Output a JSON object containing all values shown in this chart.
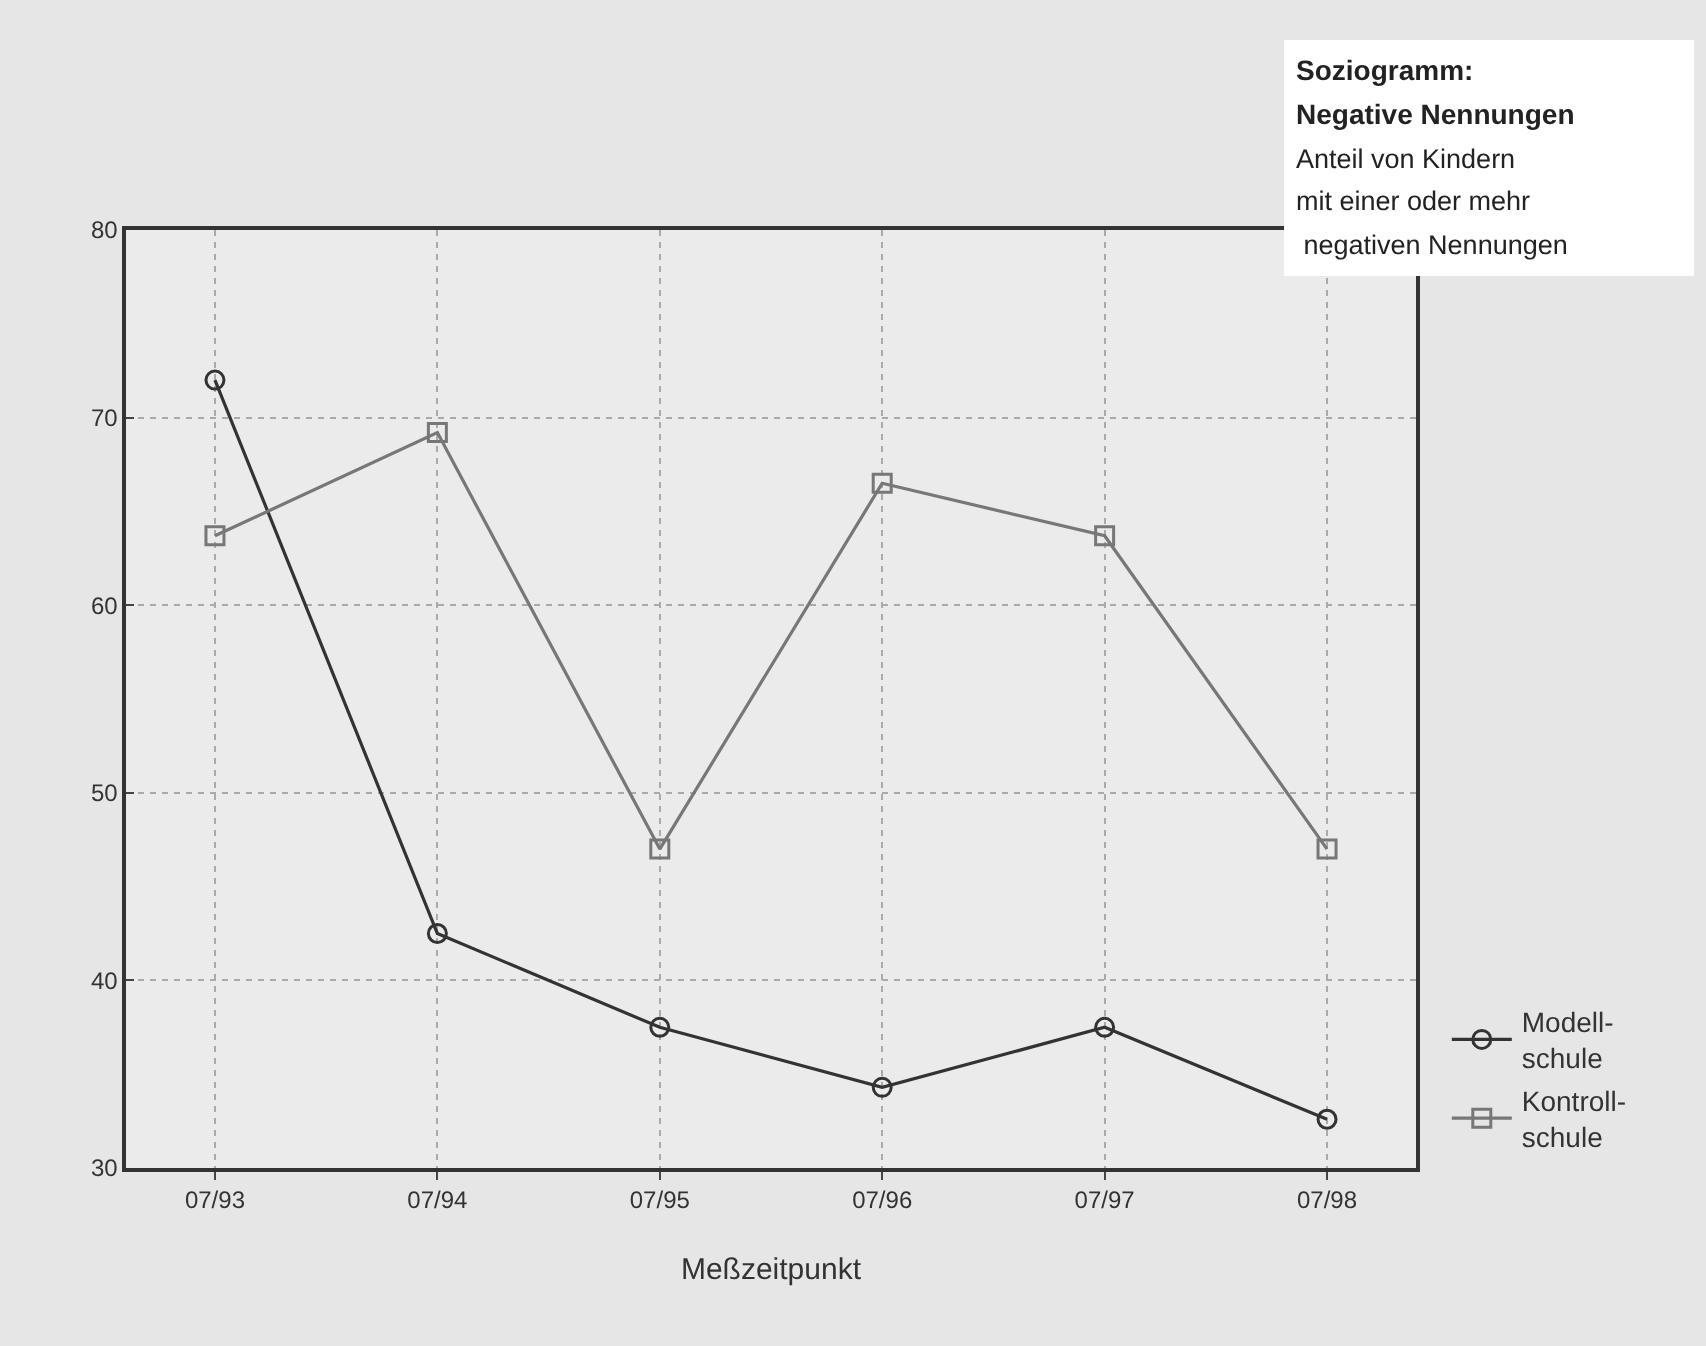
{
  "chart_data": {
    "type": "line",
    "title": "Soziogramm:\nNegative Nennungen",
    "subtitle": "Anteil von Kindern\nmit einer oder mehr\n negativen Nennungen",
    "xlabel": "Meßzeitpunkt",
    "categories": [
      "07/93",
      "07/94",
      "07/95",
      "07/96",
      "07/97",
      "07/98"
    ],
    "series": [
      {
        "name": "Modell-\nschule",
        "color": "#333333",
        "marker": "circle",
        "values": [
          72,
          42.5,
          37.5,
          34.3,
          37.5,
          32.6
        ]
      },
      {
        "name": "Kontroll-\nschule",
        "color": "#777777",
        "marker": "square",
        "values": [
          63.7,
          69.2,
          47.0,
          66.5,
          63.7,
          47.0
        ]
      }
    ],
    "ylim": [
      30,
      80
    ],
    "yticks": [
      30,
      40,
      50,
      60,
      70,
      80
    ],
    "grid": true,
    "legend": "bottom right",
    "line_style": "solid"
  }
}
